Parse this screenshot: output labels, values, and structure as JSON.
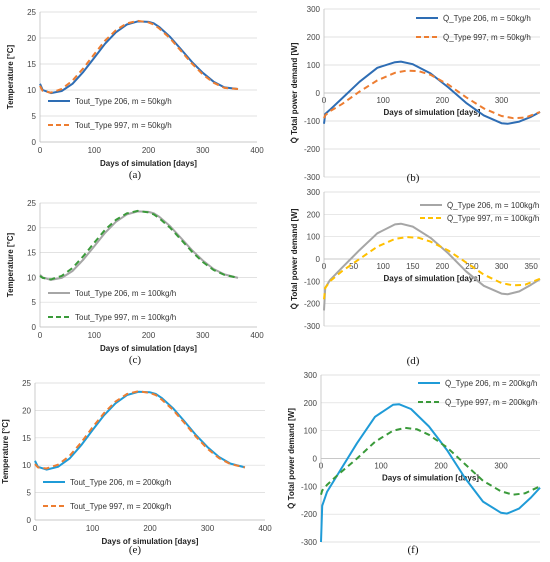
{
  "chart_data": [
    {
      "type": "line",
      "caption": "(a)",
      "xlabel": "Days of simulation [days]",
      "ylabel": "Temperature [°C]",
      "xlim": [
        0,
        400
      ],
      "ylim": [
        0,
        25
      ],
      "xticks": [
        "0",
        "100",
        "200",
        "300",
        "400"
      ],
      "yticks": [
        "0",
        "5",
        "10",
        "15",
        "20",
        "25"
      ],
      "grid": "horizontal",
      "legend_position": "bottom-left",
      "series": [
        {
          "name": "Tout_Type 206, m = 50kg/h",
          "color": "#2e6db4",
          "dash": "solid",
          "x": [
            0,
            5,
            20,
            40,
            60,
            80,
            100,
            120,
            140,
            160,
            180,
            200,
            210,
            220,
            240,
            260,
            280,
            300,
            320,
            340,
            365
          ],
          "y": [
            11.2,
            10.0,
            9.4,
            9.8,
            11.2,
            13.5,
            16.2,
            18.9,
            21.1,
            22.6,
            23.2,
            23.1,
            22.8,
            22.1,
            20.2,
            17.8,
            15.4,
            13.3,
            11.6,
            10.5,
            10.2
          ]
        },
        {
          "name": "Tout_Type 997, m = 50kg/h",
          "color": "#ed7d31",
          "dash": "dashed",
          "x": [
            0,
            5,
            20,
            40,
            60,
            80,
            100,
            120,
            140,
            160,
            180,
            200,
            210,
            220,
            240,
            260,
            280,
            300,
            320,
            340,
            365
          ],
          "y": [
            10.8,
            9.8,
            9.5,
            10.2,
            11.8,
            14.2,
            16.9,
            19.5,
            21.5,
            22.8,
            23.3,
            23.0,
            22.6,
            21.8,
            19.9,
            17.5,
            15.1,
            13.0,
            11.4,
            10.4,
            10.2
          ]
        }
      ]
    },
    {
      "type": "line",
      "caption": "(b)",
      "xlabel": "Days of simulation [days]",
      "ylabel": "Total power demand [W]",
      "ylabel_symbol": "Q̇",
      "xlim": [
        0,
        365
      ],
      "ylim": [
        -300,
        300
      ],
      "xticks": [
        "0",
        "100",
        "200",
        "300"
      ],
      "yticks": [
        "-300",
        "-200",
        "-100",
        "0",
        "100",
        "200",
        "300"
      ],
      "grid": "horizontal",
      "legend_position": "top-right",
      "series": [
        {
          "name": "Q̇_Type 206, m =  50kg/h",
          "color": "#2e6db4",
          "dash": "solid",
          "x": [
            0,
            2,
            10,
            30,
            60,
            90,
            120,
            130,
            150,
            180,
            210,
            240,
            270,
            300,
            310,
            330,
            350,
            365
          ],
          "y": [
            -110,
            -75,
            -60,
            -20,
            40,
            90,
            110,
            112,
            103,
            70,
            20,
            -35,
            -80,
            -108,
            -110,
            -102,
            -85,
            -68
          ]
        },
        {
          "name": "Q̇_Type 997, m =  50kg/h",
          "color": "#ed7d31",
          "dash": "dashed",
          "x": [
            0,
            2,
            10,
            30,
            60,
            90,
            120,
            140,
            160,
            180,
            210,
            240,
            270,
            300,
            320,
            340,
            365
          ],
          "y": [
            -90,
            -80,
            -65,
            -40,
            5,
            45,
            72,
            80,
            78,
            65,
            30,
            -15,
            -55,
            -82,
            -90,
            -88,
            -68
          ]
        }
      ]
    },
    {
      "type": "line",
      "caption": "(c)",
      "xlabel": "Days of simulation [days]",
      "ylabel": "Temperature [°C]",
      "xlim": [
        0,
        400
      ],
      "ylim": [
        0,
        25
      ],
      "xticks": [
        "0",
        "100",
        "200",
        "300",
        "400"
      ],
      "yticks": [
        "0",
        "5",
        "10",
        "15",
        "20",
        "25"
      ],
      "grid": "horizontal",
      "legend_position": "bottom-left",
      "series": [
        {
          "name": "Tout_Type 206, m = 100kg/h",
          "color": "#a6a6a6",
          "dash": "solid",
          "x": [
            0,
            5,
            20,
            40,
            60,
            80,
            100,
            120,
            140,
            160,
            180,
            200,
            210,
            220,
            240,
            260,
            280,
            300,
            320,
            340,
            365
          ],
          "y": [
            10.5,
            10.0,
            9.5,
            9.9,
            11.3,
            13.6,
            16.3,
            19.0,
            21.2,
            22.7,
            23.3,
            23.2,
            22.9,
            22.2,
            20.3,
            17.9,
            15.5,
            13.4,
            11.7,
            10.6,
            9.9
          ]
        },
        {
          "name": "Tout_Type 997, m = 100kg/h",
          "color": "#3a9a3a",
          "dash": "dashed",
          "x": [
            0,
            5,
            20,
            40,
            60,
            80,
            100,
            120,
            140,
            160,
            180,
            200,
            210,
            220,
            240,
            260,
            280,
            300,
            320,
            340,
            365
          ],
          "y": [
            10.3,
            9.9,
            9.6,
            10.3,
            11.9,
            14.3,
            17.0,
            19.6,
            21.6,
            22.9,
            23.4,
            23.1,
            22.7,
            21.9,
            20.0,
            17.6,
            15.2,
            13.1,
            11.5,
            10.5,
            9.9
          ]
        }
      ]
    },
    {
      "type": "line",
      "caption": "(d)",
      "xlabel": "Days of simulation [days]",
      "ylabel": "Total power demand [W]",
      "ylabel_symbol": "Q̇",
      "xlim": [
        0,
        365
      ],
      "ylim": [
        -300,
        300
      ],
      "xticks": [
        "0",
        "50",
        "100",
        "150",
        "200",
        "250",
        "300",
        "350"
      ],
      "yticks": [
        "-300",
        "-200",
        "-100",
        "0",
        "100",
        "200",
        "300"
      ],
      "grid": "horizontal",
      "legend_position": "top-right",
      "series": [
        {
          "name": "Q̇_Type 206, m = 100kg/h",
          "color": "#a6a6a6",
          "dash": "solid",
          "x": [
            0,
            2,
            10,
            30,
            60,
            90,
            120,
            130,
            150,
            180,
            210,
            240,
            270,
            300,
            310,
            330,
            350,
            365
          ],
          "y": [
            -230,
            -130,
            -95,
            -40,
            40,
            115,
            155,
            158,
            145,
            95,
            25,
            -55,
            -120,
            -155,
            -158,
            -145,
            -115,
            -90
          ]
        },
        {
          "name": "Q̇_Type 997, m = 100kg/h",
          "color": "#ffc000",
          "dash": "dashed",
          "x": [
            0,
            2,
            10,
            30,
            60,
            90,
            120,
            140,
            160,
            180,
            210,
            240,
            270,
            300,
            320,
            340,
            365
          ],
          "y": [
            -180,
            -130,
            -100,
            -55,
            0,
            55,
            90,
            98,
            95,
            78,
            38,
            -15,
            -70,
            -108,
            -118,
            -115,
            -88
          ]
        }
      ]
    },
    {
      "type": "line",
      "caption": "(e)",
      "xlabel": "Days of simulation [days]",
      "ylabel": "Temperature [°C]",
      "xlim": [
        0,
        400
      ],
      "ylim": [
        0,
        25
      ],
      "xticks": [
        "0",
        "100",
        "200",
        "300",
        "400"
      ],
      "yticks": [
        "0",
        "5",
        "10",
        "15",
        "20",
        "25"
      ],
      "grid": "horizontal",
      "legend_position": "bottom-left",
      "series": [
        {
          "name": "Tout_Type 206, m = 200kg/h",
          "color": "#1f9bd7",
          "dash": "solid",
          "x": [
            0,
            5,
            20,
            40,
            60,
            80,
            100,
            120,
            140,
            160,
            180,
            200,
            210,
            220,
            240,
            260,
            280,
            300,
            320,
            340,
            365
          ],
          "y": [
            10.8,
            9.7,
            9.2,
            9.7,
            11.2,
            13.6,
            16.4,
            19.1,
            21.3,
            22.8,
            23.4,
            23.3,
            23.0,
            22.3,
            20.4,
            18.0,
            15.5,
            13.3,
            11.5,
            10.3,
            9.6
          ]
        },
        {
          "name": "Tout_Type 997, m = 200kg/h",
          "color": "#ed7d31",
          "dash": "dashed",
          "x": [
            0,
            5,
            20,
            40,
            60,
            80,
            100,
            120,
            140,
            160,
            180,
            200,
            210,
            220,
            240,
            260,
            280,
            300,
            320,
            340,
            365
          ],
          "y": [
            10.2,
            9.6,
            9.4,
            10.1,
            11.7,
            14.1,
            16.9,
            19.5,
            21.6,
            23.0,
            23.5,
            23.2,
            22.8,
            22.0,
            20.1,
            17.7,
            15.2,
            13.0,
            11.3,
            10.2,
            9.6
          ]
        }
      ]
    },
    {
      "type": "line",
      "caption": "(f)",
      "xlabel": "Days of simulation [days]",
      "ylabel": "Total power demand [W]",
      "ylabel_symbol": "Q̇",
      "xlim": [
        0,
        365
      ],
      "ylim": [
        -300,
        300
      ],
      "xticks": [
        "0",
        "100",
        "200",
        "300"
      ],
      "yticks": [
        "-300",
        "-200",
        "-100",
        "0",
        "100",
        "200",
        "300"
      ],
      "grid": "horizontal",
      "legend_position": "top-right",
      "series": [
        {
          "name": "Q̇_Type 206, m = 200kg/h",
          "color": "#1f9bd7",
          "dash": "solid",
          "x": [
            0,
            2,
            10,
            30,
            60,
            90,
            120,
            130,
            150,
            180,
            210,
            240,
            270,
            300,
            310,
            330,
            350,
            365
          ],
          "y": [
            -300,
            -170,
            -120,
            -50,
            55,
            150,
            193,
            195,
            178,
            115,
            30,
            -70,
            -155,
            -195,
            -198,
            -180,
            -140,
            -105
          ]
        },
        {
          "name": "Q̇_Type 997, m = 200kg/h",
          "color": "#3a9a3a",
          "dash": "dashed",
          "x": [
            0,
            2,
            10,
            30,
            60,
            90,
            120,
            140,
            160,
            180,
            210,
            240,
            270,
            300,
            320,
            340,
            365
          ],
          "y": [
            -130,
            -115,
            -95,
            -55,
            0,
            60,
            100,
            110,
            105,
            85,
            40,
            -20,
            -80,
            -118,
            -130,
            -125,
            -100
          ]
        }
      ]
    }
  ]
}
